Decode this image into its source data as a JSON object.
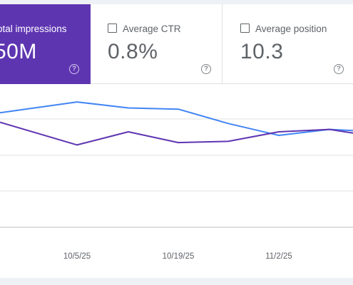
{
  "metrics": [
    {
      "label": "otal impressions",
      "value": "50M",
      "selected": true
    },
    {
      "label": "Average CTR",
      "value": "0.8%",
      "selected": false
    },
    {
      "label": "Average position",
      "value": "10.3",
      "selected": false
    }
  ],
  "help_glyph": "?",
  "colors": {
    "impressions": "#5e35b1",
    "ctr_line": "#4285f4",
    "gridline": "#e0e0e0"
  },
  "chart_data": {
    "type": "line",
    "x_tick_labels": [
      "10/5/25",
      "10/19/25",
      "11/2/25"
    ],
    "x": [
      "9/24/25",
      "10/5/25",
      "10/12/25",
      "10/19/25",
      "10/26/25",
      "11/2/25",
      "11/9/25",
      "11/13/25"
    ],
    "series": [
      {
        "color": "#4285f4",
        "values": [
          3.6,
          4.5,
          4.0,
          3.9,
          2.7,
          1.7,
          2.2,
          2.1
        ]
      },
      {
        "color": "#5e35b1",
        "values": [
          2.8,
          0.9,
          2.0,
          1.1,
          1.2,
          2.0,
          2.2,
          1.9
        ]
      }
    ],
    "ylim": [
      -6,
      6
    ],
    "grid": true
  }
}
